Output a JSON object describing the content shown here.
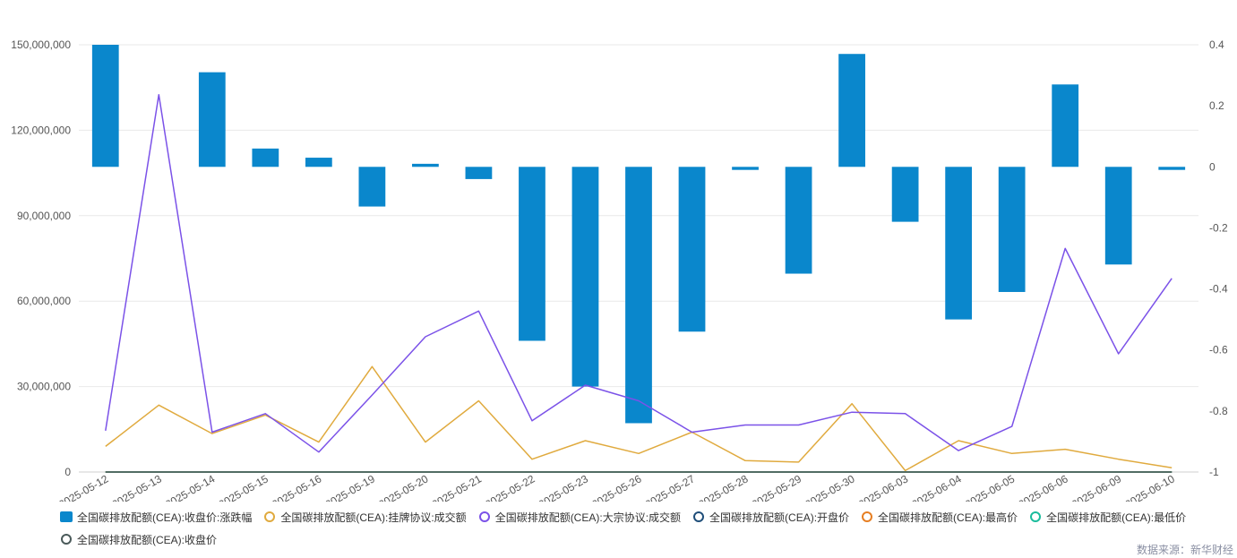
{
  "chart_data": {
    "type": "bar",
    "categories": [
      "2025-05-12",
      "2025-05-13",
      "2025-05-14",
      "2025-05-15",
      "2025-05-16",
      "2025-05-19",
      "2025-05-20",
      "2025-05-21",
      "2025-05-22",
      "2025-05-23",
      "2025-05-26",
      "2025-05-27",
      "2025-05-28",
      "2025-05-29",
      "2025-05-30",
      "2025-06-03",
      "2025-06-04",
      "2025-06-05",
      "2025-06-06",
      "2025-06-09",
      "2025-06-10"
    ],
    "y_left": {
      "ylim": [
        0,
        150000000
      ],
      "ticks": [
        0,
        30000000,
        60000000,
        90000000,
        120000000,
        150000000
      ],
      "tick_labels": [
        "0",
        "30,000,000",
        "60,000,000",
        "90,000,000",
        "120,000,000",
        "150,000,000"
      ]
    },
    "y_right": {
      "ylim": [
        -1,
        0.4
      ],
      "ticks": [
        -1,
        -0.8,
        -0.6,
        -0.4,
        -0.2,
        0,
        0.2,
        0.4
      ],
      "tick_labels": [
        "-1",
        "-0.8",
        "-0.6",
        "-0.4",
        "-0.2",
        "0",
        "0.2",
        "0.4"
      ]
    },
    "series": [
      {
        "name": "全国碳排放配额(CEA):收盘价:涨跌幅",
        "type": "bar",
        "axis": "right",
        "color": "#0a87cc",
        "values": [
          0.4,
          null,
          0.31,
          0.06,
          0.03,
          -0.13,
          0.01,
          -0.04,
          -0.57,
          -0.72,
          -0.84,
          -0.54,
          -0.01,
          -0.35,
          0.37,
          -0.18,
          -0.5,
          -0.41,
          0.27,
          -0.32,
          -0.01
        ]
      },
      {
        "name": "全国碳排放配额(CEA):挂牌协议:成交额",
        "type": "line",
        "axis": "left",
        "color": "#e0aa3e",
        "values": [
          9000000,
          23500000,
          13500000,
          20000000,
          10500000,
          37000000,
          10500000,
          25000000,
          4500000,
          11000000,
          6500000,
          14000000,
          4000000,
          3500000,
          24000000,
          500000,
          11000000,
          6500000,
          8000000,
          4500000,
          1500000
        ]
      },
      {
        "name": "全国碳排放配额(CEA):大宗协议:成交额",
        "type": "line",
        "axis": "left",
        "color": "#7b52e8",
        "values": [
          14500000,
          132500000,
          14000000,
          20500000,
          7000000,
          27000000,
          47500000,
          56500000,
          18000000,
          30500000,
          25000000,
          14000000,
          16500000,
          16500000,
          21000000,
          20500000,
          7500000,
          16000000,
          78500000,
          41500000,
          68000000
        ]
      },
      {
        "name": "全国碳排放配额(CEA):开盘价",
        "type": "line",
        "axis": "left",
        "color": "#1f4e79",
        "values": [
          0,
          0,
          0,
          0,
          0,
          0,
          0,
          0,
          0,
          0,
          0,
          0,
          0,
          0,
          0,
          0,
          0,
          0,
          0,
          0,
          0
        ]
      },
      {
        "name": "全国碳排放配额(CEA):最高价",
        "type": "line",
        "axis": "left",
        "color": "#e67e22",
        "values": [
          0,
          0,
          0,
          0,
          0,
          0,
          0,
          0,
          0,
          0,
          0,
          0,
          0,
          0,
          0,
          0,
          0,
          0,
          0,
          0,
          0
        ]
      },
      {
        "name": "全国碳排放配额(CEA):最低价",
        "type": "line",
        "axis": "left",
        "color": "#1abc9c",
        "values": [
          0,
          0,
          0,
          0,
          0,
          0,
          0,
          0,
          0,
          0,
          0,
          0,
          0,
          0,
          0,
          0,
          0,
          0,
          0,
          0,
          0
        ]
      },
      {
        "name": "全国碳排放配额(CEA):收盘价",
        "type": "line",
        "axis": "left",
        "color": "#4a5a5a",
        "values": [
          0,
          0,
          0,
          0,
          0,
          0,
          0,
          0,
          0,
          0,
          0,
          0,
          0,
          0,
          0,
          0,
          0,
          0,
          0,
          0,
          0
        ]
      }
    ],
    "source": "数据来源：新华财经"
  }
}
